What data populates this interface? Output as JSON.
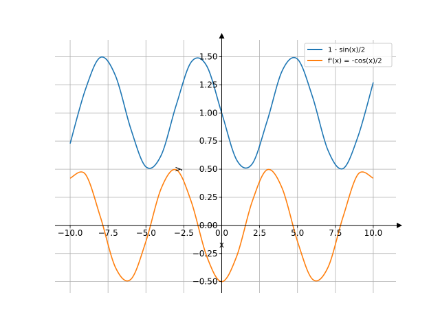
{
  "chart_data": {
    "type": "line",
    "xlabel": "x",
    "ylabel": "y",
    "xlim": [
      -11.0,
      11.5
    ],
    "ylim": [
      -0.6,
      1.65
    ],
    "xticks": [
      -10,
      -7.5,
      -5,
      -2.5,
      0,
      2.5,
      5,
      7.5,
      10
    ],
    "xtick_labels": [
      "−10.0",
      "−7.5",
      "−5.0",
      "−2.5",
      "0.0",
      "2.5",
      "5.0",
      "7.5",
      "10.0"
    ],
    "yticks": [
      -0.5,
      -0.25,
      0,
      0.25,
      0.5,
      0.75,
      1.0,
      1.25,
      1.5
    ],
    "ytick_labels": [
      "−0.50",
      "−0.25",
      "0.00",
      "0.25",
      "0.50",
      "0.75",
      "1.00",
      "1.25",
      "1.50"
    ],
    "grid": true,
    "axes_through_origin": true,
    "legend_position": "top-right",
    "series": [
      {
        "name": "1 - sin(x)/2",
        "color": "#1f77b4",
        "x": [
          -10,
          -9,
          -8,
          -7,
          -6,
          -5,
          -4,
          -3,
          -2,
          -1,
          0,
          1,
          2,
          3,
          4,
          5,
          6,
          7,
          8,
          9,
          10
        ],
        "y": [
          0.728,
          1.206,
          1.495,
          1.328,
          0.86,
          0.521,
          0.622,
          1.071,
          1.455,
          1.421,
          1.0,
          0.579,
          0.545,
          0.929,
          1.378,
          1.479,
          1.14,
          0.672,
          0.505,
          0.794,
          1.272
        ]
      },
      {
        "name": "f'(x) = -cos(x)/2",
        "color": "#ff7f0e",
        "x": [
          -10,
          -9,
          -8,
          -7,
          -6,
          -5,
          -4,
          -3,
          -2,
          -1,
          0,
          1,
          2,
          3,
          4,
          5,
          6,
          7,
          8,
          9,
          10
        ],
        "y": [
          0.42,
          0.456,
          0.073,
          -0.377,
          -0.48,
          -0.142,
          0.327,
          0.495,
          0.208,
          -0.27,
          -0.5,
          -0.27,
          0.208,
          0.495,
          0.327,
          -0.142,
          -0.48,
          -0.377,
          0.073,
          0.456,
          0.42
        ]
      }
    ]
  }
}
